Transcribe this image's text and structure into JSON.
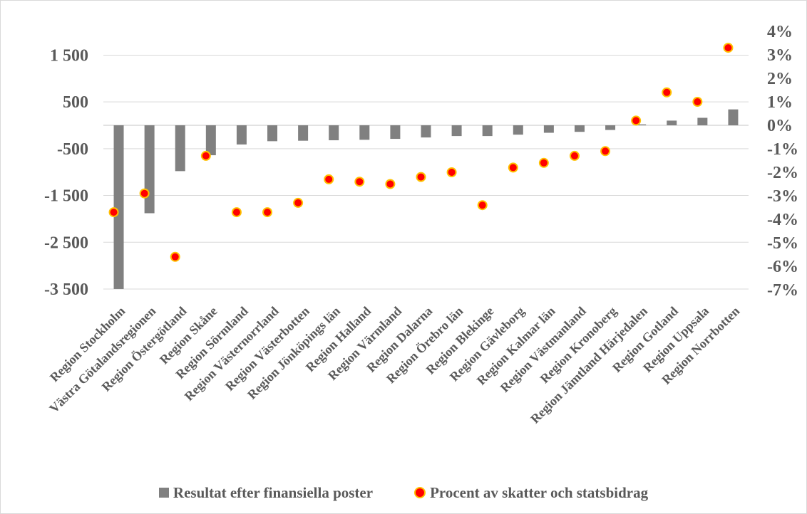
{
  "chart_data": {
    "type": "bar",
    "categories": [
      "Region Stockholm",
      "Västra Götalandsregionen",
      "Region Östergötland",
      "Region Skåne",
      "Region Sörmland",
      "Region Västernorrland",
      "Region Västerbotten",
      "Region Jönköpings län",
      "Region Halland",
      "Region Värmland",
      "Region Dalarna",
      "Region Örebro län",
      "Region Blekinge",
      "Region Gävleborg",
      "Region Kalmar län",
      "Region Västmanland",
      "Region Kronoberg",
      "Region Jämtland Härjedalen",
      "Region Gotland",
      "Region Uppsala",
      "Region Norrbotten"
    ],
    "series": [
      {
        "name": "Resultat efter finansiella poster",
        "type": "bar",
        "axis": "left",
        "values": [
          -3500,
          -1880,
          -980,
          -640,
          -410,
          -340,
          -330,
          -320,
          -310,
          -290,
          -260,
          -230,
          -230,
          -200,
          -160,
          -140,
          -100,
          20,
          100,
          160,
          340
        ]
      },
      {
        "name": "Procent av skatter och statsbidrag",
        "type": "scatter",
        "axis": "right",
        "values": [
          -3.7,
          -2.9,
          -5.6,
          -1.3,
          -3.7,
          -3.7,
          -3.3,
          -2.3,
          -2.4,
          -2.5,
          -2.2,
          -2.0,
          -3.4,
          -1.8,
          -1.6,
          -1.3,
          -1.1,
          0.2,
          1.4,
          1.0,
          3.3
        ]
      }
    ],
    "y_left": {
      "ylim": [
        -3500,
        2000
      ],
      "ticks": [
        -3500,
        -2500,
        -1500,
        -500,
        500,
        1500
      ],
      "tick_labels": [
        "-3 500",
        "-2 500",
        "-1 500",
        "-500",
        "500",
        "1 500"
      ]
    },
    "y_right": {
      "ylim": [
        -7,
        4
      ],
      "ticks": [
        -7,
        -6,
        -5,
        -4,
        -3,
        -2,
        -1,
        0,
        1,
        2,
        3,
        4
      ],
      "tick_labels": [
        "-7%",
        "-6%",
        "-5%",
        "-4%",
        "-3%",
        "-2%",
        "-1%",
        "0%",
        "1%",
        "2%",
        "3%",
        "4%"
      ]
    },
    "grid": true,
    "legend": "bottom",
    "colors": {
      "bar": "#808080",
      "marker_fill": "#ff0000",
      "marker_edge": "#ffc000",
      "grid": "#d9d9d9",
      "text": "#595959"
    }
  }
}
